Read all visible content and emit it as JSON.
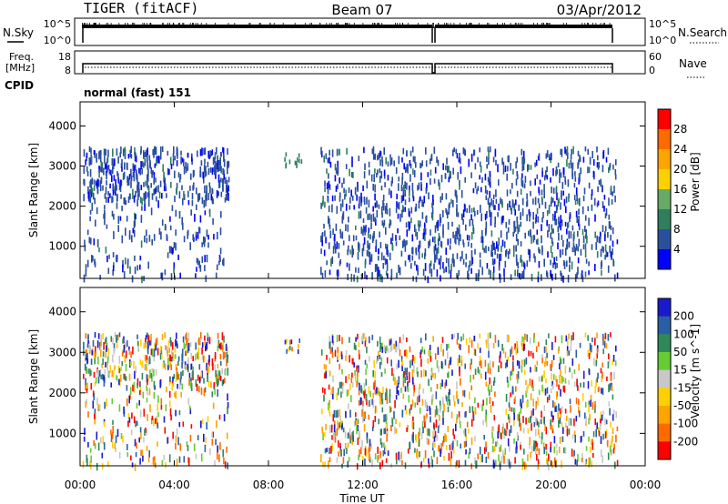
{
  "header": {
    "title": "TIGER (fitACF)",
    "beam": "Beam 07",
    "date": "03/Apr/2012"
  },
  "strip_labels": {
    "nsky": "N.Sky",
    "freq_line1": "Freq.",
    "freq_line2": "[MHz]",
    "cpid": "CPID",
    "nsearch": "N.Search",
    "nave": "Nave"
  },
  "strip_ticks": {
    "noise_left_top": "10^5",
    "noise_left_bottom": "10^0",
    "noise_right_top": "10^5",
    "noise_right_bottom": "10^0",
    "freq_left_top": "18",
    "freq_left_bottom": "8",
    "nave_right_top": "60",
    "nave_right_bottom": "0"
  },
  "cpid_text": "normal (fast) 151",
  "x_axis": {
    "label": "Time UT",
    "ticks": [
      "00:00",
      "04:00",
      "08:00",
      "12:00",
      "16:00",
      "20:00",
      "00:00"
    ]
  },
  "chart_data": [
    {
      "type": "heatmap",
      "name": "power",
      "ylabel": "Slant Range [km]",
      "y_ticks": [
        "1000",
        "2000",
        "3000",
        "4000"
      ],
      "ylim": [
        200,
        4600
      ],
      "xlim_hours": [
        0,
        24
      ],
      "colorbar_label": "Power [dB]",
      "colorbar_ticks": [
        "28",
        "24",
        "20",
        "16",
        "12",
        "8",
        "4"
      ],
      "colorbar_colors": [
        "#ff0000",
        "#ff6a00",
        "#ffa500",
        "#ffd000",
        "#66aa66",
        "#2f7f5f",
        "#2a4f9f",
        "#0000ff"
      ],
      "dominant_color": "#2a4f9f"
    },
    {
      "type": "heatmap",
      "name": "velocity",
      "ylabel": "Slant Range [km]",
      "y_ticks": [
        "1000",
        "2000",
        "3000",
        "4000"
      ],
      "ylim": [
        200,
        4600
      ],
      "xlim_hours": [
        0,
        24
      ],
      "colorbar_label": "Velocity [m s^-1]",
      "colorbar_ticks": [
        "200",
        "100",
        "50",
        "15",
        "-15",
        "-50",
        "-100",
        "-200"
      ],
      "colorbar_colors": [
        "#1a1acc",
        "#2a5fa5",
        "#2f8a5a",
        "#66cc33",
        "#c8c8c8",
        "#ffd000",
        "#ffa500",
        "#ff6a00",
        "#ff0000"
      ]
    }
  ]
}
